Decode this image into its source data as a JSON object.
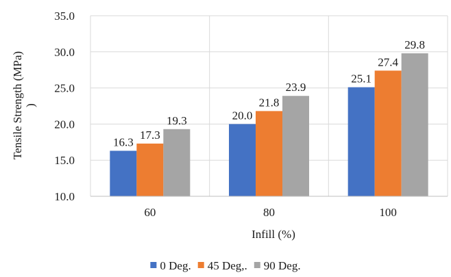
{
  "chart_data": {
    "type": "bar",
    "categories": [
      "60",
      "80",
      "100"
    ],
    "series": [
      {
        "name": "0 Deg.",
        "values": [
          16.3,
          20.0,
          25.1
        ],
        "labels": [
          "16.3",
          "20.0",
          "25.1"
        ],
        "color": "#4472C4"
      },
      {
        "name": "45 Deg,.",
        "values": [
          17.3,
          21.8,
          27.4
        ],
        "labels": [
          "17.3",
          "21.8",
          "27.4"
        ],
        "color": "#ED7D31"
      },
      {
        "name": "90 Deg.",
        "values": [
          19.3,
          23.9,
          29.8
        ],
        "labels": [
          "19.3",
          "23.9",
          "29.8"
        ],
        "color": "#A5A5A5"
      }
    ],
    "xlabel": "Infill (%)",
    "ylabel": "Tensile Strength (MPa)",
    "ylabel_suffix": ")",
    "ylim": [
      10.0,
      35.0
    ],
    "yticks": [
      10.0,
      15.0,
      20.0,
      25.0,
      30.0,
      35.0
    ],
    "ytick_labels": [
      "10.0",
      "15.0",
      "20.0",
      "25.0",
      "30.0",
      "35.0"
    ],
    "grid": true,
    "legend": "bottom"
  }
}
